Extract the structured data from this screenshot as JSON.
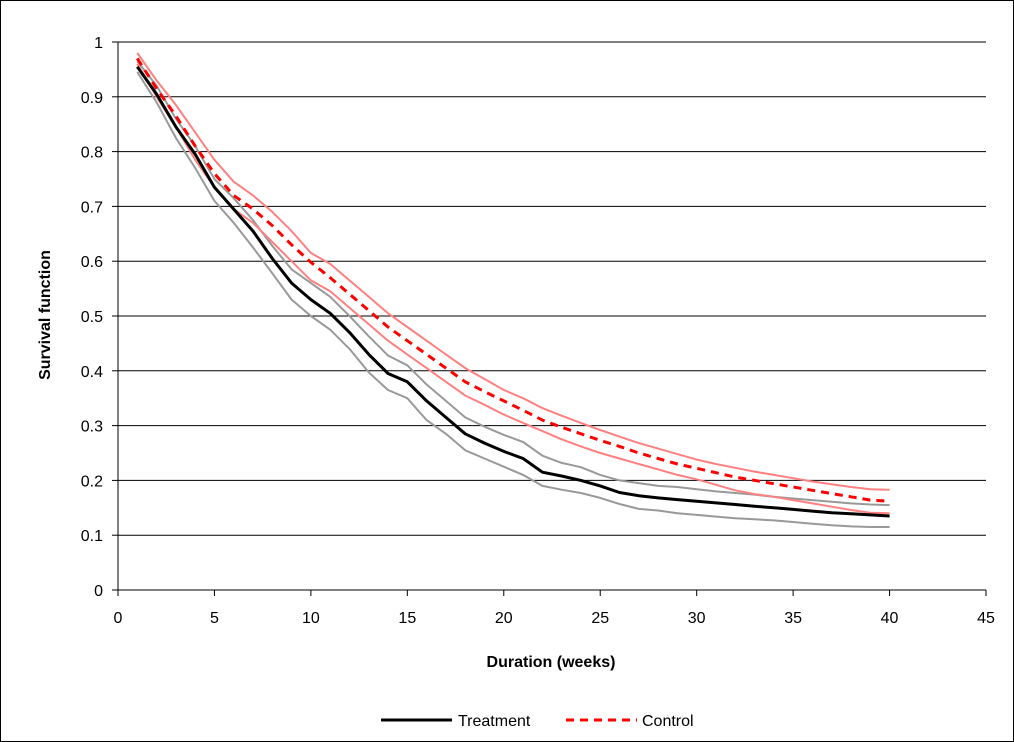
{
  "chart_data": {
    "type": "line",
    "xlabel": "Duration (weeks)",
    "ylabel": "Survival function",
    "xlim": [
      0,
      45
    ],
    "ylim": [
      0,
      1
    ],
    "xticks": [
      0,
      5,
      10,
      15,
      20,
      25,
      30,
      35,
      40,
      45
    ],
    "yticks": [
      0,
      0.1,
      0.2,
      0.3,
      0.4,
      0.5,
      0.6,
      0.7,
      0.8,
      0.9,
      1
    ],
    "grid": "horizontal",
    "legend_position": "bottom",
    "x": [
      1,
      2,
      3,
      4,
      5,
      6,
      7,
      8,
      9,
      10,
      11,
      12,
      13,
      14,
      15,
      16,
      17,
      18,
      19,
      20,
      21,
      22,
      23,
      24,
      25,
      26,
      27,
      28,
      29,
      30,
      31,
      32,
      33,
      34,
      35,
      36,
      37,
      38,
      39,
      40
    ],
    "series": [
      {
        "name": "Treatment",
        "color": "#000000",
        "dash": "solid",
        "role": "estimate",
        "values": [
          0.955,
          0.905,
          0.845,
          0.795,
          0.735,
          0.695,
          0.655,
          0.605,
          0.56,
          0.53,
          0.505,
          0.47,
          0.43,
          0.395,
          0.38,
          0.345,
          0.315,
          0.285,
          0.268,
          0.253,
          0.24,
          0.215,
          0.208,
          0.2,
          0.19,
          0.178,
          0.172,
          0.168,
          0.165,
          0.162,
          0.159,
          0.156,
          0.153,
          0.15,
          0.147,
          0.144,
          0.141,
          0.139,
          0.137,
          0.135
        ]
      },
      {
        "color": "#999999",
        "dash": "solid",
        "role": "upper-band",
        "values": [
          0.965,
          0.92,
          0.86,
          0.81,
          0.75,
          0.715,
          0.675,
          0.628,
          0.585,
          0.56,
          0.535,
          0.5,
          0.463,
          0.428,
          0.41,
          0.375,
          0.345,
          0.315,
          0.298,
          0.283,
          0.27,
          0.245,
          0.232,
          0.224,
          0.21,
          0.2,
          0.195,
          0.19,
          0.188,
          0.184,
          0.18,
          0.177,
          0.174,
          0.17,
          0.167,
          0.164,
          0.161,
          0.158,
          0.156,
          0.155
        ]
      },
      {
        "color": "#999999",
        "dash": "solid",
        "role": "lower-band",
        "values": [
          0.945,
          0.89,
          0.825,
          0.77,
          0.71,
          0.67,
          0.625,
          0.578,
          0.53,
          0.5,
          0.475,
          0.44,
          0.397,
          0.365,
          0.35,
          0.31,
          0.285,
          0.255,
          0.24,
          0.225,
          0.21,
          0.19,
          0.183,
          0.177,
          0.168,
          0.157,
          0.148,
          0.145,
          0.14,
          0.137,
          0.134,
          0.131,
          0.129,
          0.127,
          0.124,
          0.121,
          0.118,
          0.116,
          0.115,
          0.115
        ]
      },
      {
        "name": "Control",
        "color": "#ff0000",
        "dash": "dashed",
        "role": "estimate",
        "values": [
          0.97,
          0.915,
          0.865,
          0.81,
          0.76,
          0.72,
          0.695,
          0.665,
          0.63,
          0.598,
          0.57,
          0.54,
          0.51,
          0.48,
          0.455,
          0.43,
          0.405,
          0.38,
          0.362,
          0.345,
          0.328,
          0.31,
          0.297,
          0.285,
          0.273,
          0.262,
          0.25,
          0.24,
          0.23,
          0.222,
          0.214,
          0.206,
          0.2,
          0.194,
          0.188,
          0.182,
          0.176,
          0.17,
          0.164,
          0.162
        ]
      },
      {
        "color": "#ff8080",
        "dash": "solid",
        "role": "upper-band",
        "values": [
          0.98,
          0.93,
          0.885,
          0.835,
          0.785,
          0.745,
          0.72,
          0.69,
          0.655,
          0.615,
          0.595,
          0.565,
          0.535,
          0.505,
          0.48,
          0.455,
          0.43,
          0.405,
          0.385,
          0.365,
          0.35,
          0.332,
          0.318,
          0.305,
          0.292,
          0.28,
          0.268,
          0.258,
          0.248,
          0.238,
          0.23,
          0.223,
          0.216,
          0.21,
          0.204,
          0.198,
          0.193,
          0.188,
          0.184,
          0.183
        ]
      },
      {
        "color": "#ff8080",
        "dash": "solid",
        "role": "lower-band",
        "values": [
          0.96,
          0.9,
          0.845,
          0.785,
          0.735,
          0.695,
          0.67,
          0.635,
          0.6,
          0.565,
          0.545,
          0.515,
          0.485,
          0.455,
          0.43,
          0.405,
          0.38,
          0.355,
          0.338,
          0.32,
          0.305,
          0.29,
          0.275,
          0.262,
          0.25,
          0.24,
          0.23,
          0.22,
          0.21,
          0.202,
          0.192,
          0.182,
          0.175,
          0.17,
          0.164,
          0.158,
          0.152,
          0.146,
          0.141,
          0.14
        ]
      }
    ]
  }
}
